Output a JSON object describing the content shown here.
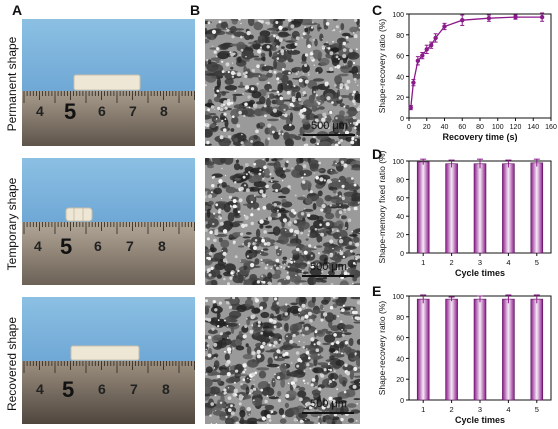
{
  "panel_labels": {
    "A": "A",
    "B": "B",
    "C": "C",
    "D": "D",
    "E": "E"
  },
  "row_labels": [
    "Permanent shape",
    "Temporary shape",
    "Recovered shape"
  ],
  "ruler_numbers": [
    "4",
    "5",
    "6",
    "7",
    "8"
  ],
  "sem_scale_label": "500 μm",
  "colors": {
    "accent": "#8b1a8b",
    "bar_fill_top": "#8b1a8b",
    "bar_fill_mid": "#f6eaf6",
    "sky": "#7fb6dd",
    "ruler": "#8c7f6e"
  },
  "chart_data": [
    {
      "type": "line",
      "panel": "C",
      "xlabel": "Recovery time (s)",
      "ylabel": "Shape-recovery ratio (%)",
      "xlim": [
        0,
        160
      ],
      "ylim": [
        0,
        100
      ],
      "xticks": [
        "0",
        "20",
        "40",
        "60",
        "80",
        "100",
        "120",
        "140",
        "160"
      ],
      "yticks": [
        "0",
        "20",
        "40",
        "60",
        "80",
        "100"
      ],
      "x": [
        2,
        5,
        10,
        15,
        20,
        25,
        30,
        40,
        60,
        90,
        120,
        150
      ],
      "y": [
        10,
        34,
        55,
        60,
        66,
        70,
        77,
        88,
        94,
        96,
        97,
        97
      ],
      "err": [
        2,
        3,
        4,
        3,
        4,
        3,
        4,
        3,
        5,
        3,
        2,
        4
      ]
    },
    {
      "type": "bar",
      "panel": "D",
      "xlabel": "Cycle times",
      "ylabel": "Shape-memory fixed ratio (%)",
      "ylim": [
        0,
        100
      ],
      "yticks": [
        "0",
        "20",
        "40",
        "60",
        "80",
        "100"
      ],
      "categories": [
        "1",
        "2",
        "3",
        "4",
        "5"
      ],
      "values": [
        99,
        97,
        97,
        97,
        98
      ],
      "err": [
        3,
        4,
        5,
        4,
        4
      ]
    },
    {
      "type": "bar",
      "panel": "E",
      "xlabel": "Cycle times",
      "ylabel": "Shape-recovery ratio (%)",
      "ylim": [
        0,
        100
      ],
      "yticks": [
        "0",
        "20",
        "40",
        "60",
        "80",
        "100"
      ],
      "categories": [
        "1",
        "2",
        "3",
        "4",
        "5"
      ],
      "values": [
        97,
        97,
        97,
        97,
        97
      ],
      "err": [
        4,
        2,
        3,
        4,
        4
      ]
    }
  ]
}
